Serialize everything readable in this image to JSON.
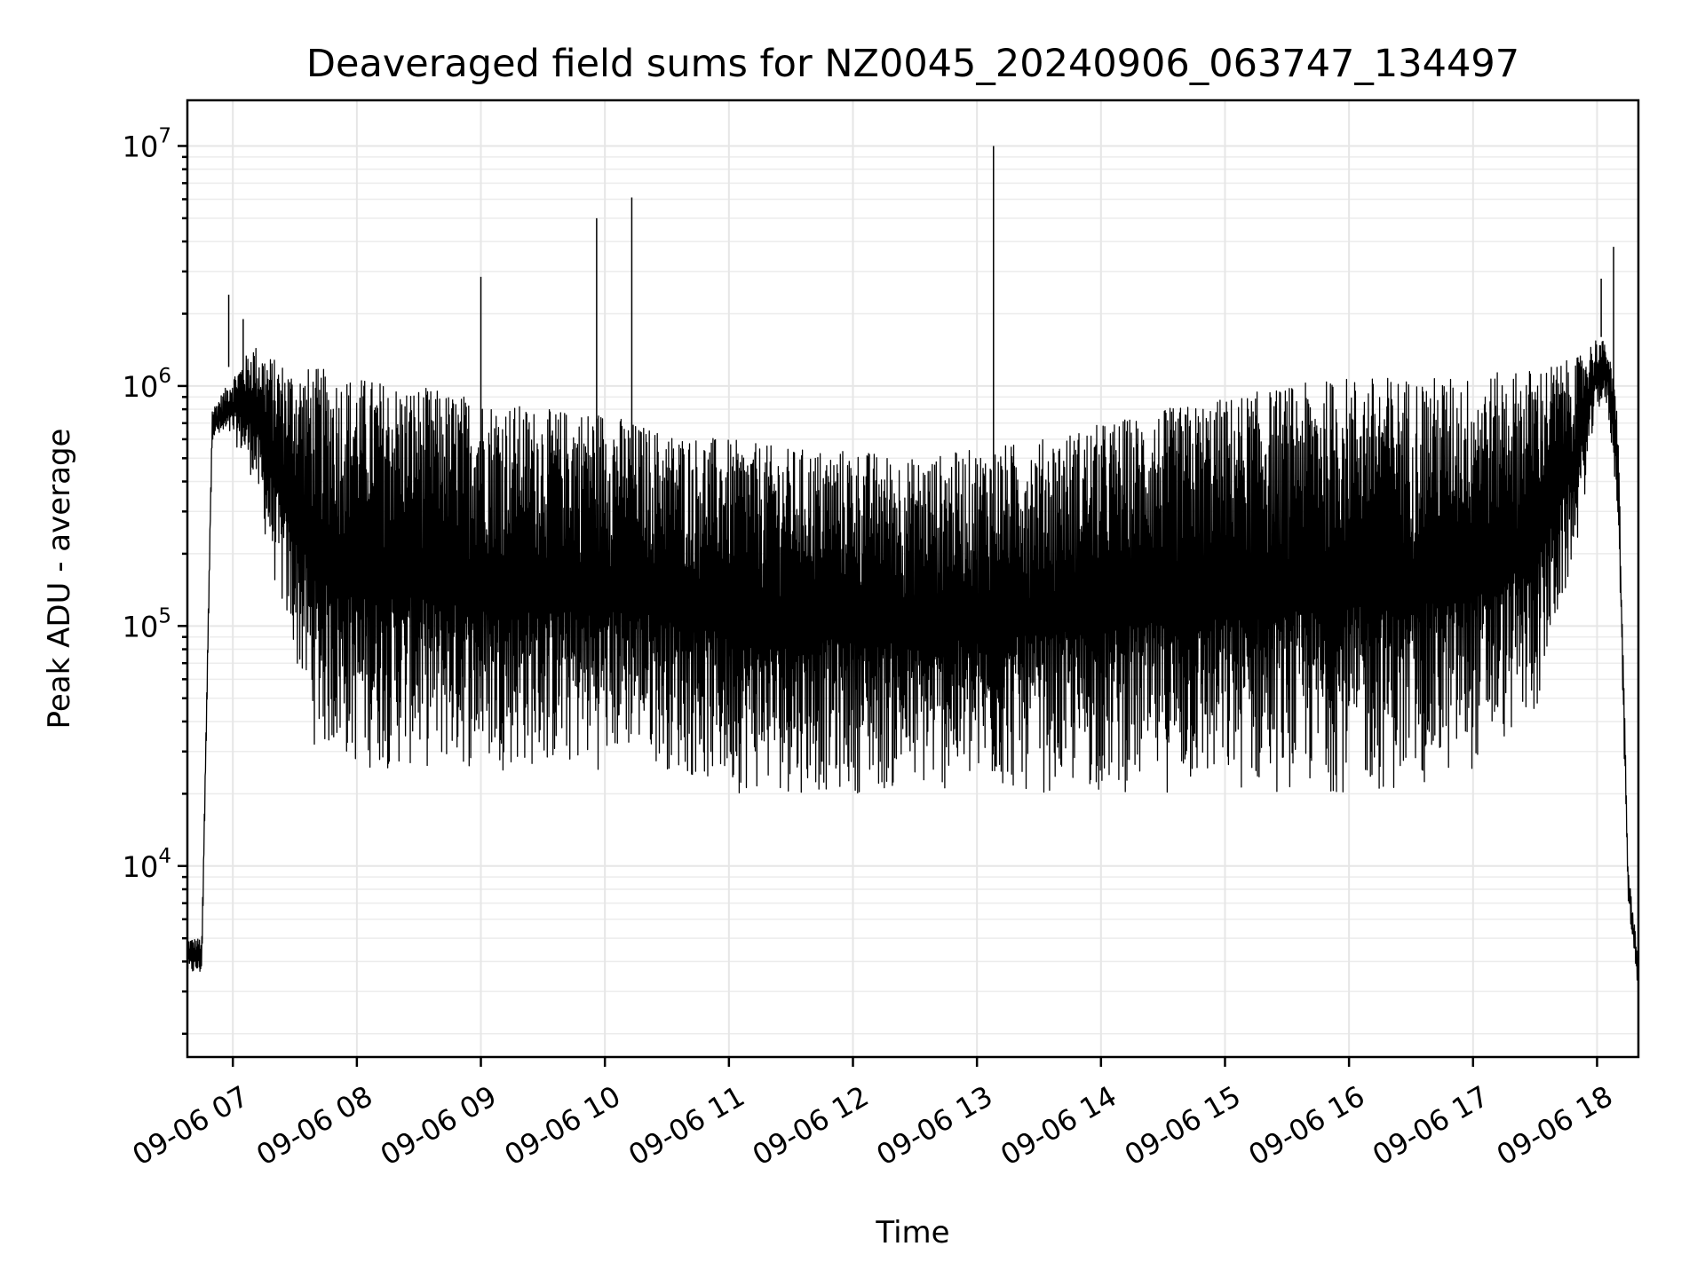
{
  "chart_data": {
    "type": "line",
    "title": "Deaveraged field sums for NZ0045_20240906_063747_134497",
    "xlabel": "Time",
    "ylabel": "Peak ADU - average",
    "yscale": "log",
    "grid": "on (major and minor)",
    "line_color": "#000000",
    "xlim": [
      "09-06 06:38",
      "09-06 18:20"
    ],
    "ylim": [
      1600,
      15500000
    ],
    "x_ticks": [
      "09-06 07",
      "09-06 08",
      "09-06 09",
      "09-06 10",
      "09-06 11",
      "09-06 12",
      "09-06 13",
      "09-06 14",
      "09-06 15",
      "09-06 16",
      "09-06 17",
      "09-06 18"
    ],
    "y_ticks": [
      {
        "value": 10000,
        "base": "10",
        "exp": "4"
      },
      {
        "value": 100000,
        "base": "10",
        "exp": "5"
      },
      {
        "value": 1000000,
        "base": "10",
        "exp": "6"
      },
      {
        "value": 10000000,
        "base": "10",
        "exp": "7"
      }
    ],
    "series_envelope": {
      "time": [
        "06:38",
        "06:45",
        "06:50",
        "07:00",
        "07:10",
        "07:20",
        "07:30",
        "07:40",
        "08:00",
        "08:30",
        "09:00",
        "09:30",
        "10:00",
        "10:15",
        "10:30",
        "11:00",
        "11:30",
        "12:00",
        "12:30",
        "13:00",
        "13:30",
        "14:00",
        "14:30",
        "15:00",
        "15:30",
        "16:00",
        "16:30",
        "17:00",
        "17:30",
        "17:50",
        "18:00",
        "18:05",
        "18:10",
        "18:15",
        "18:20"
      ],
      "upper": [
        5000,
        5000,
        800000,
        1100000,
        1500000,
        1300000,
        1200000,
        1200000,
        1100000,
        1000000,
        900000,
        800000,
        800000,
        700000,
        650000,
        600000,
        550000,
        550000,
        500000,
        550000,
        600000,
        700000,
        800000,
        900000,
        1000000,
        1100000,
        1100000,
        1100000,
        1200000,
        1300000,
        1600000,
        1500000,
        800000,
        10000,
        4000
      ],
      "lower": [
        3500,
        3500,
        600000,
        600000,
        400000,
        150000,
        70000,
        30000,
        25000,
        25000,
        25000,
        25000,
        25000,
        30000,
        25000,
        20000,
        20000,
        20000,
        20000,
        20000,
        20000,
        20000,
        20000,
        20000,
        20000,
        20000,
        20000,
        25000,
        40000,
        200000,
        800000,
        800000,
        300000,
        7000,
        3000
      ]
    },
    "spikes": [
      {
        "time": "06:58",
        "value": 2400000
      },
      {
        "time": "07:05",
        "value": 1900000
      },
      {
        "time": "09:00",
        "value": 2850000
      },
      {
        "time": "09:56",
        "value": 5000000
      },
      {
        "time": "10:13",
        "value": 6100000
      },
      {
        "time": "13:08",
        "value": 10000000
      },
      {
        "time": "18:02",
        "value": 2800000
      },
      {
        "time": "18:08",
        "value": 3800000
      }
    ]
  }
}
